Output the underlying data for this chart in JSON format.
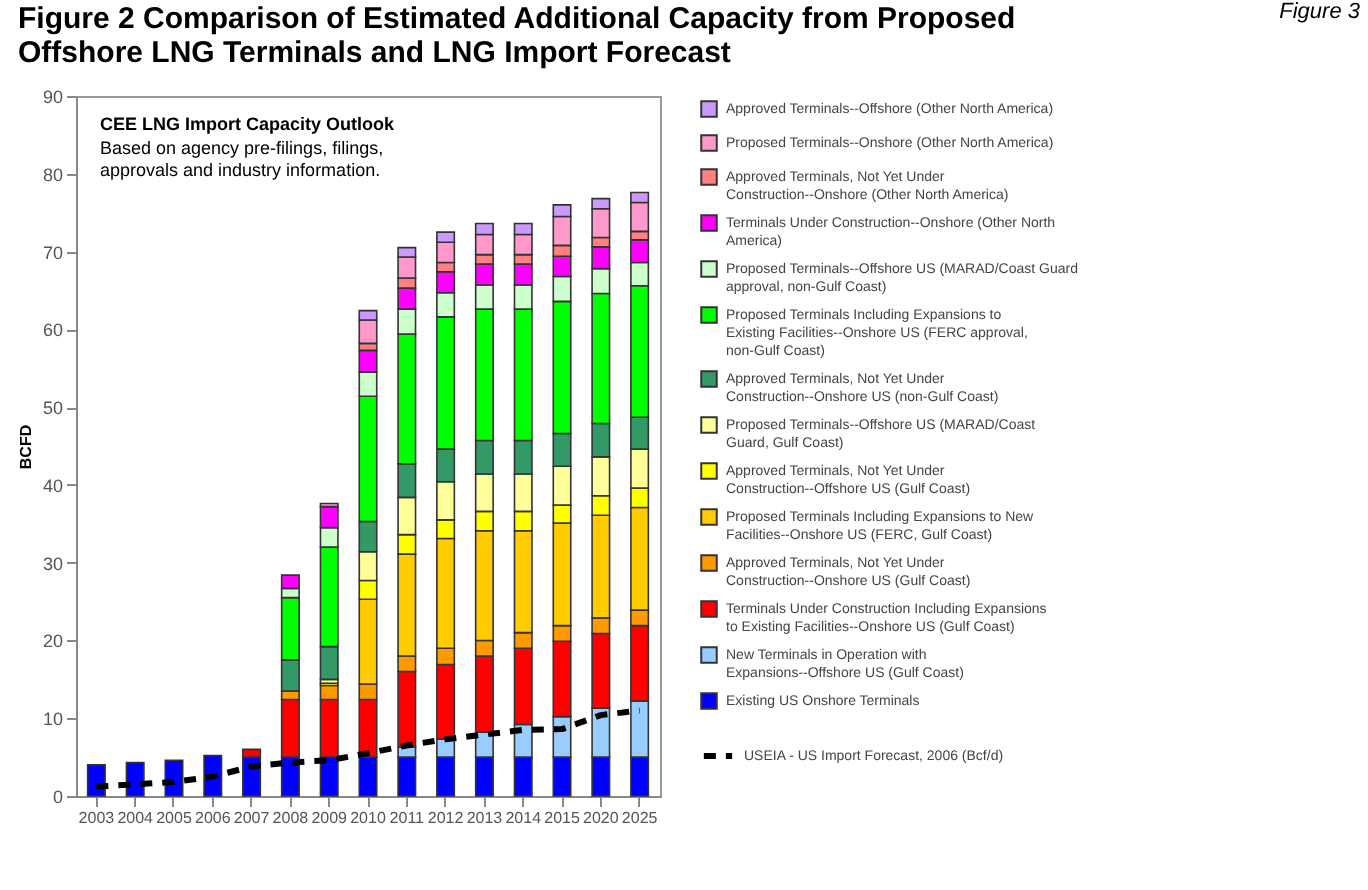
{
  "chart_data": {
    "type": "bar",
    "stacked": true,
    "title": "Figure 2  Comparison of Estimated Additional Capacity from Proposed\nOffshore LNG Terminals and LNG Import Forecast",
    "ylabel": "BCFD",
    "annotations": [
      "Figure 3",
      "CEE LNG Import Capacity Outlook",
      "Based on agency pre-filings, filings, approvals and industry information."
    ],
    "categories": [
      "2003",
      "2004",
      "2005",
      "2006",
      "2007",
      "2008",
      "2009",
      "2010",
      "2011",
      "2012",
      "2013",
      "2014",
      "2015",
      "2020",
      "2025"
    ],
    "ylim": [
      0,
      90
    ],
    "yticks": [
      0,
      10,
      20,
      30,
      40,
      50,
      60,
      70,
      80,
      90
    ],
    "grid": false,
    "legend": "right",
    "series": [
      {
        "name": "Existing US Onshore Terminals",
        "color": "#0000ff",
        "values": [
          4.0,
          4.3,
          4.6,
          5.2,
          5.0,
          5.0,
          5.0,
          5.0,
          5.0,
          5.0,
          5.0,
          5.0,
          5.0,
          5.0,
          5.0
        ]
      },
      {
        "name": "New Terminals in Operation with Expansions--Offshore US (Gulf Coast)",
        "color": "#99ccff",
        "values": [
          null,
          null,
          null,
          null,
          null,
          null,
          null,
          null,
          1.3,
          2.3,
          3.2,
          4.2,
          5.2,
          6.3,
          7.2
        ]
      },
      {
        "name": "Terminals Under Construction Including Expansions to Existing Facilities--Onshore US (Gulf Coast)",
        "color": "#ff0000",
        "values": [
          null,
          null,
          null,
          null,
          1.0,
          7.4,
          7.4,
          7.4,
          9.7,
          9.6,
          9.8,
          9.8,
          9.7,
          9.6,
          9.7
        ]
      },
      {
        "name": "Approved Terminals, Not Yet Under Construction--Onshore US (Gulf Coast)",
        "color": "#ff9900",
        "values": [
          null,
          null,
          null,
          null,
          null,
          1.1,
          1.8,
          2.0,
          2.0,
          2.1,
          2.0,
          2.0,
          2.0,
          2.0,
          2.0
        ]
      },
      {
        "name": "Proposed Terminals Including Expansions to New Facilities--Onshore US (FERC, Gulf Coast)",
        "color": "#ffcc00",
        "values": [
          null,
          null,
          null,
          null,
          null,
          null,
          null,
          10.9,
          13.1,
          14.1,
          14.1,
          13.1,
          13.2,
          13.2,
          13.2
        ]
      },
      {
        "name": "Approved Terminals, Not Yet Under Construction--Offshore US (Gulf Coast)",
        "color": "#ffff00",
        "values": [
          null,
          null,
          null,
          null,
          null,
          null,
          0.3,
          2.4,
          2.5,
          2.4,
          2.5,
          2.5,
          2.3,
          2.5,
          2.5
        ]
      },
      {
        "name": "Proposed Terminals--Offshore US (MARAD/Coast Guard, Gulf Coast)",
        "color": "#ffff99",
        "values": [
          null,
          null,
          null,
          null,
          null,
          null,
          0.5,
          3.7,
          4.8,
          4.9,
          4.8,
          4.8,
          5.0,
          5.0,
          5.0
        ]
      },
      {
        "name": "Approved Terminals, Not Yet Under Construction--Onshore US (non-Gulf Coast)",
        "color": "#339966",
        "values": [
          null,
          null,
          null,
          null,
          null,
          4.0,
          4.2,
          3.9,
          4.3,
          4.2,
          4.3,
          4.3,
          4.2,
          4.3,
          4.1
        ]
      },
      {
        "name": "Proposed Terminals Including Expansions to Existing Facilities--Onshore US (FERC approval, non-Gulf Coast)",
        "color": "#00ff00",
        "values": [
          null,
          null,
          null,
          null,
          null,
          8.0,
          12.8,
          16.1,
          16.7,
          17.0,
          16.9,
          16.9,
          17.0,
          16.7,
          16.9
        ]
      },
      {
        "name": "Proposed Terminals--Offshore US (MARAD/Coast Guard approval, non-Gulf Coast)",
        "color": "#ccffcc",
        "values": [
          null,
          null,
          null,
          null,
          null,
          1.2,
          2.5,
          3.1,
          3.2,
          3.1,
          3.1,
          3.1,
          3.2,
          3.2,
          3.0
        ]
      },
      {
        "name": "Terminals Under Construction--Onshore (Other North America)",
        "color": "#ff00ff",
        "values": [
          null,
          null,
          null,
          null,
          null,
          1.7,
          2.7,
          2.8,
          2.7,
          2.7,
          2.7,
          2.7,
          2.6,
          2.8,
          2.9
        ]
      },
      {
        "name": "Approved Terminals, Not Yet Under Construction--Onshore (Other North America)",
        "color": "#ff8080",
        "values": [
          null,
          null,
          null,
          null,
          null,
          null,
          null,
          0.9,
          1.3,
          1.2,
          1.2,
          1.2,
          1.4,
          1.2,
          1.1
        ]
      },
      {
        "name": "Proposed Terminals--Onshore (Other North America)",
        "color": "#ff99cc",
        "values": [
          null,
          null,
          null,
          null,
          null,
          null,
          0.4,
          3.0,
          2.7,
          2.6,
          2.6,
          2.6,
          3.7,
          3.7,
          3.7
        ]
      },
      {
        "name": "Approved Terminals--Offshore (Other North America)",
        "color": "#cc99ff",
        "values": [
          null,
          null,
          null,
          null,
          null,
          null,
          null,
          1.2,
          1.2,
          1.3,
          1.4,
          1.4,
          1.5,
          1.3,
          1.3
        ]
      },
      {
        "name": "USEIA - US Import Forecast, 2006 (Bcf/d)",
        "type": "line",
        "color": "#000000",
        "line_style": "dashed",
        "values": [
          1.2,
          1.5,
          1.8,
          2.5,
          3.8,
          4.3,
          4.6,
          5.5,
          6.5,
          7.3,
          7.9,
          8.5,
          8.6,
          10.4,
          11.0
        ]
      }
    ]
  }
}
